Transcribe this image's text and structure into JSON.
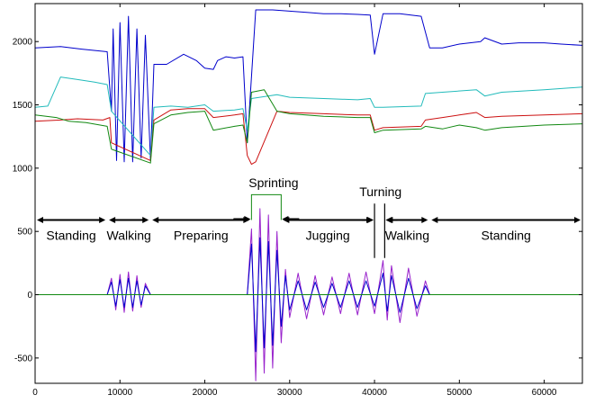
{
  "chart_data": {
    "type": "line",
    "title": "",
    "xlabel": "",
    "ylabel": "",
    "xlim": [
      0,
      64500
    ],
    "ylim": [
      -700,
      2300
    ],
    "grid": false,
    "legend": "none",
    "x_ticks": [
      0,
      10000,
      20000,
      30000,
      40000,
      50000,
      60000
    ],
    "x_tick_labels": [
      "0",
      "10000",
      "20000",
      "30000",
      "40000",
      "50000",
      "60000"
    ],
    "y_ticks": [
      -500,
      0,
      500,
      1000,
      1500,
      2000
    ],
    "y_tick_labels": [
      "-500",
      "0",
      "500",
      "1000",
      "1500",
      "2000"
    ],
    "colors": {
      "blue": "#0000cc",
      "cyan": "#22bbbb",
      "red": "#cc1111",
      "green": "#118811",
      "purple": "#9922cc",
      "axis": "#000000"
    },
    "series": [
      {
        "color": "#0000cc",
        "group": "upper",
        "points": [
          [
            0,
            1950
          ],
          [
            3000,
            1960
          ],
          [
            5500,
            1940
          ],
          [
            8500,
            1920
          ],
          [
            9000,
            1450
          ],
          [
            9200,
            2100
          ],
          [
            9600,
            1060
          ],
          [
            10000,
            2150
          ],
          [
            10500,
            1050
          ],
          [
            11000,
            2200
          ],
          [
            11500,
            1050
          ],
          [
            12000,
            2100
          ],
          [
            12500,
            1080
          ],
          [
            13000,
            2050
          ],
          [
            13600,
            1060
          ],
          [
            14000,
            1820
          ],
          [
            15500,
            1820
          ],
          [
            17500,
            1900
          ],
          [
            19000,
            1850
          ],
          [
            20000,
            1790
          ],
          [
            21000,
            1780
          ],
          [
            21500,
            1850
          ],
          [
            22500,
            1880
          ],
          [
            23500,
            1870
          ],
          [
            24500,
            1880
          ],
          [
            25000,
            1200
          ],
          [
            26000,
            2250
          ],
          [
            28000,
            2250
          ],
          [
            30000,
            2240
          ],
          [
            32000,
            2230
          ],
          [
            34000,
            2220
          ],
          [
            36000,
            2220
          ],
          [
            38000,
            2215
          ],
          [
            39500,
            2210
          ],
          [
            40000,
            1900
          ],
          [
            41000,
            2220
          ],
          [
            43000,
            2220
          ],
          [
            45500,
            2200
          ],
          [
            46500,
            1950
          ],
          [
            48000,
            1950
          ],
          [
            50000,
            1980
          ],
          [
            52500,
            2000
          ],
          [
            53000,
            2030
          ],
          [
            55000,
            1980
          ],
          [
            57000,
            1990
          ],
          [
            60000,
            1990
          ],
          [
            62000,
            1980
          ],
          [
            64500,
            1970
          ]
        ]
      },
      {
        "color": "#22bbbb",
        "group": "upper",
        "points": [
          [
            0,
            1480
          ],
          [
            1500,
            1490
          ],
          [
            3000,
            1720
          ],
          [
            5000,
            1700
          ],
          [
            7000,
            1680
          ],
          [
            8500,
            1660
          ],
          [
            9000,
            1450
          ],
          [
            13600,
            1100
          ],
          [
            14000,
            1480
          ],
          [
            16000,
            1490
          ],
          [
            18000,
            1480
          ],
          [
            20000,
            1500
          ],
          [
            21000,
            1450
          ],
          [
            23500,
            1460
          ],
          [
            24500,
            1470
          ],
          [
            25000,
            1300
          ],
          [
            25500,
            1550
          ],
          [
            28500,
            1580
          ],
          [
            30000,
            1560
          ],
          [
            34000,
            1550
          ],
          [
            38000,
            1540
          ],
          [
            39500,
            1550
          ],
          [
            40000,
            1480
          ],
          [
            41000,
            1480
          ],
          [
            45500,
            1490
          ],
          [
            46000,
            1590
          ],
          [
            48000,
            1600
          ],
          [
            52000,
            1620
          ],
          [
            53000,
            1570
          ],
          [
            55000,
            1600
          ],
          [
            60000,
            1620
          ],
          [
            64500,
            1640
          ]
        ]
      },
      {
        "color": "#cc1111",
        "group": "upper",
        "points": [
          [
            0,
            1370
          ],
          [
            3000,
            1380
          ],
          [
            5000,
            1390
          ],
          [
            8000,
            1380
          ],
          [
            8800,
            1400
          ],
          [
            9000,
            1200
          ],
          [
            13600,
            1060
          ],
          [
            14000,
            1380
          ],
          [
            16000,
            1460
          ],
          [
            18000,
            1470
          ],
          [
            20000,
            1470
          ],
          [
            21000,
            1400
          ],
          [
            23500,
            1420
          ],
          [
            24500,
            1430
          ],
          [
            25000,
            1100
          ],
          [
            25500,
            1030
          ],
          [
            26000,
            1050
          ],
          [
            28500,
            1450
          ],
          [
            30000,
            1440
          ],
          [
            34000,
            1430
          ],
          [
            38000,
            1420
          ],
          [
            39500,
            1420
          ],
          [
            40000,
            1300
          ],
          [
            41000,
            1320
          ],
          [
            45500,
            1330
          ],
          [
            46000,
            1380
          ],
          [
            48000,
            1400
          ],
          [
            50000,
            1420
          ],
          [
            52000,
            1440
          ],
          [
            53000,
            1400
          ],
          [
            55000,
            1410
          ],
          [
            60000,
            1420
          ],
          [
            64500,
            1430
          ]
        ]
      },
      {
        "color": "#118811",
        "group": "upper",
        "points": [
          [
            0,
            1420
          ],
          [
            2500,
            1400
          ],
          [
            4000,
            1370
          ],
          [
            6000,
            1360
          ],
          [
            8500,
            1330
          ],
          [
            9000,
            1150
          ],
          [
            13600,
            1040
          ],
          [
            14000,
            1350
          ],
          [
            16000,
            1420
          ],
          [
            18000,
            1440
          ],
          [
            20000,
            1450
          ],
          [
            21000,
            1300
          ],
          [
            23500,
            1330
          ],
          [
            24500,
            1340
          ],
          [
            25000,
            1200
          ],
          [
            25500,
            1600
          ],
          [
            27000,
            1620
          ],
          [
            28500,
            1450
          ],
          [
            30000,
            1430
          ],
          [
            34000,
            1410
          ],
          [
            38000,
            1400
          ],
          [
            39500,
            1400
          ],
          [
            40000,
            1280
          ],
          [
            41000,
            1300
          ],
          [
            45500,
            1310
          ],
          [
            46000,
            1330
          ],
          [
            48000,
            1310
          ],
          [
            50000,
            1340
          ],
          [
            52000,
            1320
          ],
          [
            53000,
            1300
          ],
          [
            55000,
            1320
          ],
          [
            60000,
            1340
          ],
          [
            64500,
            1350
          ]
        ]
      },
      {
        "color": "#9922cc",
        "group": "lower",
        "points": [
          [
            0,
            0
          ],
          [
            8500,
            0
          ],
          [
            9000,
            130
          ],
          [
            9500,
            -120
          ],
          [
            10000,
            160
          ],
          [
            10500,
            -140
          ],
          [
            11000,
            180
          ],
          [
            11500,
            -130
          ],
          [
            12000,
            150
          ],
          [
            12500,
            -100
          ],
          [
            13000,
            90
          ],
          [
            13600,
            0
          ],
          [
            25000,
            0
          ],
          [
            25500,
            520
          ],
          [
            26000,
            -680
          ],
          [
            26500,
            680
          ],
          [
            27000,
            -620
          ],
          [
            27500,
            630
          ],
          [
            28000,
            -580
          ],
          [
            28500,
            500
          ],
          [
            29000,
            -380
          ],
          [
            29500,
            200
          ],
          [
            30000,
            -180
          ],
          [
            31000,
            170
          ],
          [
            32000,
            -190
          ],
          [
            33000,
            150
          ],
          [
            34000,
            -160
          ],
          [
            35000,
            140
          ],
          [
            36000,
            -150
          ],
          [
            37000,
            170
          ],
          [
            38000,
            -160
          ],
          [
            39000,
            180
          ],
          [
            40000,
            -150
          ],
          [
            41000,
            270
          ],
          [
            41500,
            -200
          ],
          [
            42000,
            230
          ],
          [
            43000,
            -220
          ],
          [
            44000,
            210
          ],
          [
            45000,
            -170
          ],
          [
            46000,
            110
          ],
          [
            46500,
            0
          ],
          [
            64500,
            0
          ]
        ]
      },
      {
        "color": "#0000cc",
        "group": "lower",
        "points": [
          [
            0,
            0
          ],
          [
            8500,
            0
          ],
          [
            9000,
            100
          ],
          [
            9500,
            -90
          ],
          [
            10000,
            120
          ],
          [
            10500,
            -100
          ],
          [
            11000,
            130
          ],
          [
            11500,
            -100
          ],
          [
            12000,
            110
          ],
          [
            12500,
            -80
          ],
          [
            13000,
            70
          ],
          [
            13600,
            0
          ],
          [
            25000,
            0
          ],
          [
            25500,
            400
          ],
          [
            26000,
            -450
          ],
          [
            26500,
            450
          ],
          [
            27000,
            -420
          ],
          [
            27500,
            420
          ],
          [
            28000,
            -400
          ],
          [
            28500,
            350
          ],
          [
            29000,
            -250
          ],
          [
            29500,
            150
          ],
          [
            30000,
            -120
          ],
          [
            31000,
            110
          ],
          [
            32000,
            -120
          ],
          [
            33000,
            100
          ],
          [
            34000,
            -100
          ],
          [
            35000,
            90
          ],
          [
            36000,
            -100
          ],
          [
            37000,
            110
          ],
          [
            38000,
            -100
          ],
          [
            39000,
            110
          ],
          [
            40000,
            -90
          ],
          [
            41000,
            170
          ],
          [
            41500,
            -130
          ],
          [
            42000,
            150
          ],
          [
            43000,
            -140
          ],
          [
            44000,
            130
          ],
          [
            45000,
            -110
          ],
          [
            46000,
            70
          ],
          [
            46500,
            0
          ],
          [
            64500,
            0
          ]
        ]
      },
      {
        "color": "#118811",
        "group": "lower",
        "points": [
          [
            0,
            0
          ],
          [
            25500,
            0
          ],
          [
            29000,
            0
          ],
          [
            64500,
            0
          ]
        ]
      }
    ],
    "annotations": {
      "segments": [
        {
          "label": "Standing",
          "x_start": 0,
          "x_end": 8500
        },
        {
          "label": "Walking",
          "x_start": 8500,
          "x_end": 13600
        },
        {
          "label": "Preparing",
          "x_start": 13600,
          "x_end": 25500
        },
        {
          "label": "Sprinting",
          "x_start": 25500,
          "x_end": 29000
        },
        {
          "label": "Jugging",
          "x_start": 29000,
          "x_end": 40000
        },
        {
          "label": "Turning",
          "x_start": 40000,
          "x_end": 41200
        },
        {
          "label": "Walking",
          "x_start": 41200,
          "x_end": 46500
        },
        {
          "label": "Standing",
          "x_start": 46500,
          "x_end": 64500
        }
      ],
      "arrow_y": 590,
      "label_y": 470
    }
  }
}
